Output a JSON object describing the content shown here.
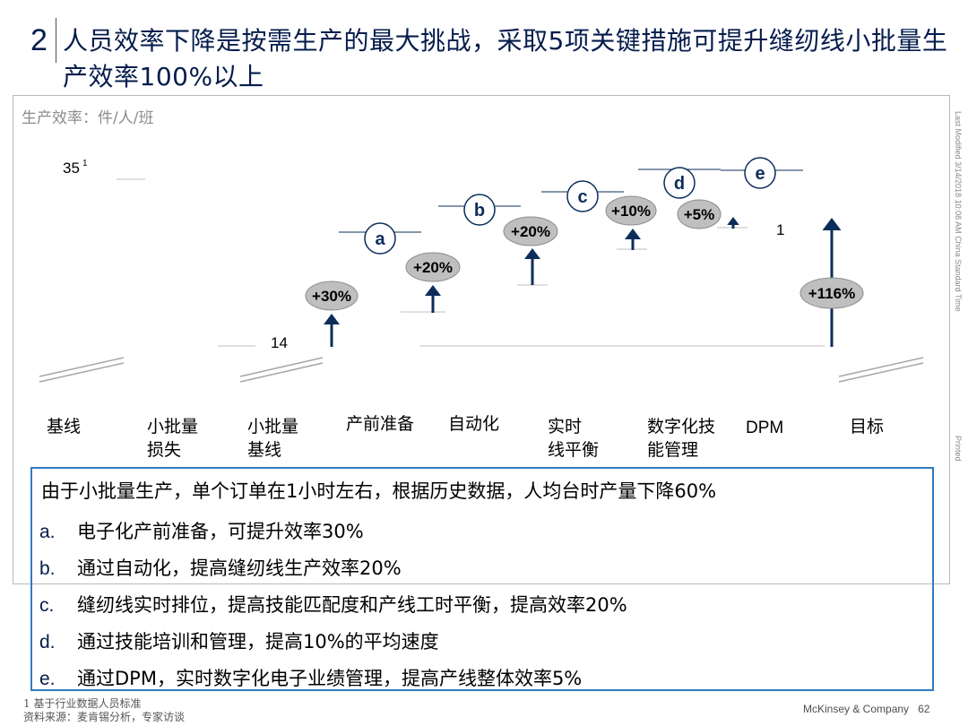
{
  "title": {
    "number": "2",
    "text": "人员效率下降是按需生产的最大挑战，采取5项关键措施可提升缝纫线小批量生产效率100%以上"
  },
  "side_notes": {
    "modified": "Last Modified 3/14/2018 10:08 AM China Standard Time",
    "printed": "Printed"
  },
  "colors": {
    "navy": "#0b2d5b",
    "bubble": "#bfbfbf",
    "box_border": "#2e7cc2",
    "gridline": "#bfbfbf"
  },
  "chart_data": {
    "type": "waterfall",
    "unit_label": "生产效率：件/人/班",
    "categories": [
      "基线",
      "小批量\n损失",
      "小批量\n基线",
      "产前准备",
      "自动化",
      "实时\n线平衡",
      "数字化技\n能管理",
      "DPM",
      "目标"
    ],
    "baseline": {
      "value": 35,
      "label": "35",
      "footnote": "1"
    },
    "small_batch_baseline": {
      "value": 14,
      "label": "14"
    },
    "steps": [
      {
        "category": "产前准备",
        "marker": "a",
        "change": "+30%"
      },
      {
        "category": "自动化",
        "marker": "b",
        "change": "+20%"
      },
      {
        "category": "实时\n线平衡",
        "marker": "c",
        "change": "+20%"
      },
      {
        "category": "数字化技\n能管理",
        "marker": "d",
        "change": "+10%"
      },
      {
        "category": "DPM",
        "marker": "e",
        "change": "+5%"
      }
    ],
    "target": {
      "label": "1",
      "change": "+116%"
    }
  },
  "measures": {
    "intro": "由于小批量生产，单个订单在1小时左右，根据历史数据，人均台时产量下降60%",
    "items": [
      {
        "marker": "a.",
        "text": "电子化产前准备，可提升效率30%"
      },
      {
        "marker": "b.",
        "text": "通过自动化，提高缝纫线生产效率20%"
      },
      {
        "marker": "c.",
        "text": "缝纫线实时排位，提高技能匹配度和产线工时平衡，提高效率20%"
      },
      {
        "marker": "d.",
        "text": "通过技能培训和管理，提高10%的平均速度"
      },
      {
        "marker": "e.",
        "text": "通过DPM，实时数字化电子业绩管理，提高产线整体效率5%"
      }
    ]
  },
  "source": "1 基于行业数据人员标准\n资料来源：麦肯锡分析，专家访谈",
  "footer": {
    "company": "McKinsey & Company",
    "page": "62"
  }
}
